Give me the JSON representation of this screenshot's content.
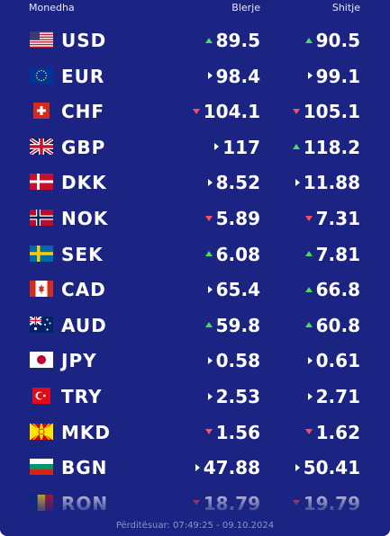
{
  "header": {
    "currency": "Monedha",
    "buy": "Blerje",
    "sell": "Shitje"
  },
  "rates": [
    {
      "code": "USD",
      "flag": "us-flag-icon",
      "buy": "89.5",
      "buy_trend": "up",
      "sell": "90.5",
      "sell_trend": "up"
    },
    {
      "code": "EUR",
      "flag": "eu-flag-icon",
      "buy": "98.4",
      "buy_trend": "same",
      "sell": "99.1",
      "sell_trend": "same"
    },
    {
      "code": "CHF",
      "flag": "ch-flag-icon",
      "buy": "104.1",
      "buy_trend": "down",
      "sell": "105.1",
      "sell_trend": "down"
    },
    {
      "code": "GBP",
      "flag": "gb-flag-icon",
      "buy": "117",
      "buy_trend": "same",
      "sell": "118.2",
      "sell_trend": "up"
    },
    {
      "code": "DKK",
      "flag": "dk-flag-icon",
      "buy": "8.52",
      "buy_trend": "same",
      "sell": "11.88",
      "sell_trend": "same"
    },
    {
      "code": "NOK",
      "flag": "no-flag-icon",
      "buy": "5.89",
      "buy_trend": "down",
      "sell": "7.31",
      "sell_trend": "down"
    },
    {
      "code": "SEK",
      "flag": "se-flag-icon",
      "buy": "6.08",
      "buy_trend": "up",
      "sell": "7.81",
      "sell_trend": "up"
    },
    {
      "code": "CAD",
      "flag": "ca-flag-icon",
      "buy": "65.4",
      "buy_trend": "same",
      "sell": "66.8",
      "sell_trend": "up"
    },
    {
      "code": "AUD",
      "flag": "au-flag-icon",
      "buy": "59.8",
      "buy_trend": "up",
      "sell": "60.8",
      "sell_trend": "up"
    },
    {
      "code": "JPY",
      "flag": "jp-flag-icon",
      "buy": "0.58",
      "buy_trend": "same",
      "sell": "0.61",
      "sell_trend": "same"
    },
    {
      "code": "TRY",
      "flag": "tr-flag-icon",
      "buy": "2.53",
      "buy_trend": "same",
      "sell": "2.71",
      "sell_trend": "same"
    },
    {
      "code": "MKD",
      "flag": "mk-flag-icon",
      "buy": "1.56",
      "buy_trend": "down",
      "sell": "1.62",
      "sell_trend": "down"
    },
    {
      "code": "BGN",
      "flag": "bg-flag-icon",
      "buy": "47.88",
      "buy_trend": "same",
      "sell": "50.41",
      "sell_trend": "same"
    },
    {
      "code": "RON",
      "flag": "ro-flag-icon",
      "buy": "18.79",
      "buy_trend": "down",
      "sell": "19.79",
      "sell_trend": "down"
    }
  ],
  "updated": "Përditësuar: 07:49:25 - 09.10.2024",
  "colors": {
    "background": "#1b2383",
    "up": "#4cd964",
    "down": "#ff4d5e",
    "text": "#ffffff"
  }
}
